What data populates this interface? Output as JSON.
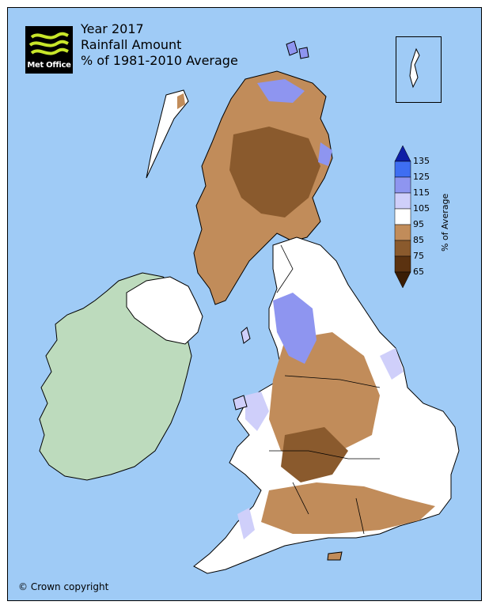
{
  "header": {
    "logo_text": "Met Office",
    "title_line1": "Year 2017",
    "title_line2": "Rainfall Amount",
    "title_line3": "% of 1981-2010 Average"
  },
  "legend": {
    "axis_label": "% of Average",
    "ticks": [
      "135",
      "125",
      "115",
      "105",
      "95",
      "85",
      "75",
      "65"
    ],
    "bands": [
      {
        "range": ">135",
        "color": "#0d1ea6"
      },
      {
        "range": "125-135",
        "color": "#3e6ef2"
      },
      {
        "range": "115-125",
        "color": "#8e95f0"
      },
      {
        "range": "105-115",
        "color": "#cfcffa"
      },
      {
        "range": "95-105",
        "color": "#ffffff"
      },
      {
        "range": "85-95",
        "color": "#c18c5a"
      },
      {
        "range": "75-85",
        "color": "#8a5a2d"
      },
      {
        "range": "65-75",
        "color": "#5b3210"
      },
      {
        "range": "<65",
        "color": "#3a1d05"
      }
    ]
  },
  "colors": {
    "sea": "#9fcbf6",
    "ireland_land": "#bddbbd",
    "wet": "#8e95f0",
    "dry": "#c18c5a",
    "very_dry": "#8a5a2d"
  },
  "footer": {
    "copyright": "© Crown copyright"
  }
}
